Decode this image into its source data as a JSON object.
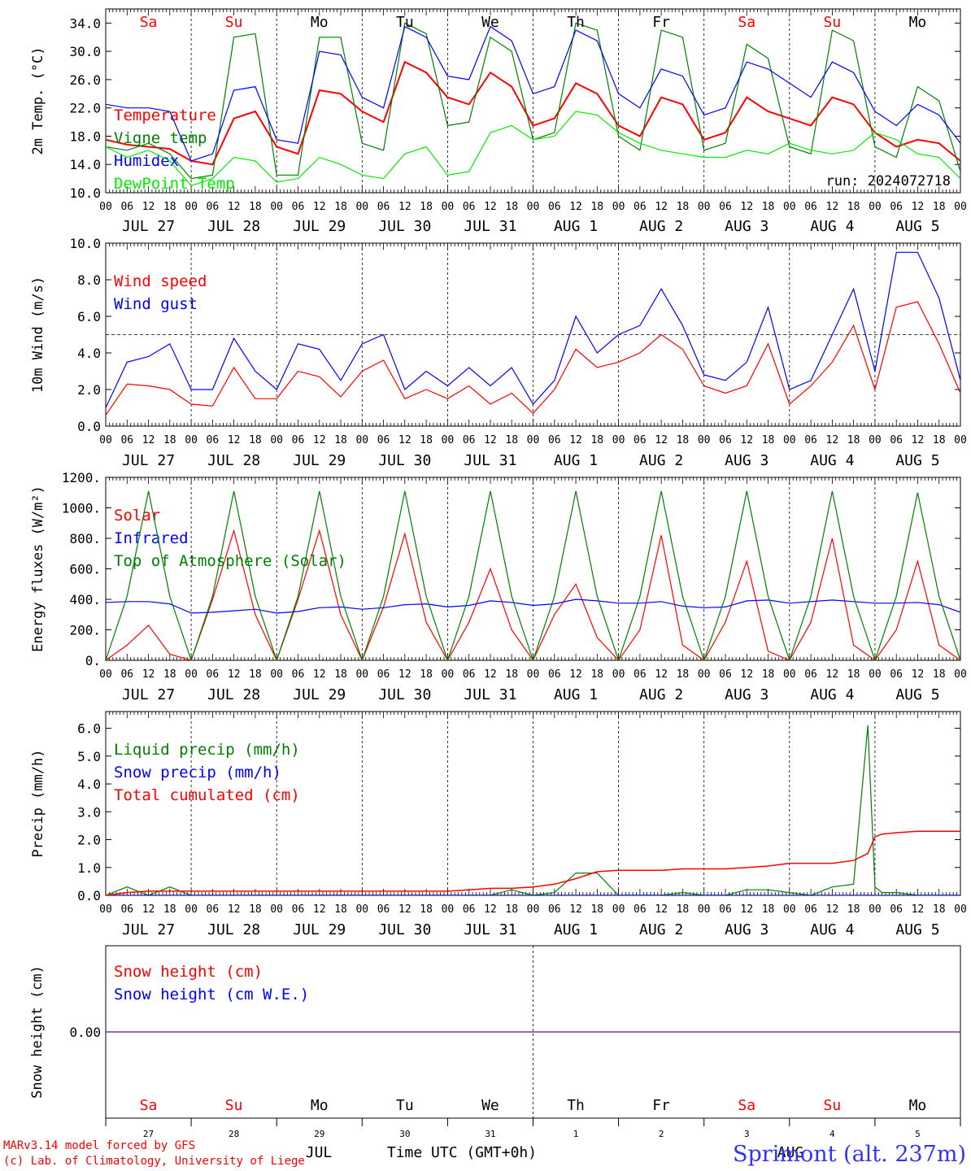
{
  "location": "Sprimont (alt. 237m)",
  "credit": {
    "line1": "MARv3.14 model forced by GFS",
    "line2": "(c) Lab. of Climatology, University of Liege"
  },
  "run_label": "run: 2024072718",
  "bottom_axis": {
    "title": "Time UTC (GMT+0h)",
    "month_label": "JUL",
    "month_label_2": "AUG",
    "day_numbers": [
      "27",
      "28",
      "29",
      "30",
      "31",
      "1",
      "2",
      "3",
      "4",
      "5"
    ]
  },
  "weekdays": [
    {
      "label": "Sa",
      "color": "#ff0000"
    },
    {
      "label": "Su",
      "color": "#ff0000"
    },
    {
      "label": "Mo",
      "color": "#000000"
    },
    {
      "label": "Tu",
      "color": "#000000"
    },
    {
      "label": "We",
      "color": "#000000"
    },
    {
      "label": "Th",
      "color": "#000000"
    },
    {
      "label": "Fr",
      "color": "#000000"
    },
    {
      "label": "Sa",
      "color": "#ff0000"
    },
    {
      "label": "Su",
      "color": "#ff0000"
    },
    {
      "label": "Mo",
      "color": "#000000"
    }
  ],
  "hour_ticks": [
    "00",
    "06",
    "12",
    "18"
  ],
  "date_labels": [
    "JUL 27",
    "JUL 28",
    "JUL 29",
    "JUL 30",
    "JUL 31",
    "AUG  1",
    "AUG  2",
    "AUG  3",
    "AUG  4",
    "AUG  5"
  ],
  "chart_data": [
    {
      "type": "line",
      "ylabel": "2m Temp. (°C)",
      "ylim": [
        10,
        36
      ],
      "yticks": [
        "10.0",
        "14.0",
        "18.0",
        "22.0",
        "26.0",
        "30.0",
        "34.0"
      ],
      "x_unit": "hours since 2024-07-27 00 UTC",
      "x": [
        0,
        6,
        12,
        18,
        24,
        30,
        36,
        42,
        48,
        54,
        60,
        66,
        72,
        78,
        84,
        90,
        96,
        102,
        108,
        114,
        120,
        126,
        132,
        138,
        144,
        150,
        156,
        162,
        168,
        174,
        180,
        186,
        192,
        198,
        204,
        210,
        216,
        222,
        228,
        234,
        240
      ],
      "series": [
        {
          "name": "Temperature",
          "color": "#ff0000",
          "values": [
            17.5,
            16.8,
            16.5,
            16.2,
            14.5,
            14.0,
            20.5,
            21.5,
            16.5,
            15.5,
            24.5,
            24.0,
            21.5,
            20.0,
            28.5,
            27.0,
            23.5,
            22.5,
            27.0,
            25.0,
            19.5,
            20.5,
            25.5,
            24.0,
            19.5,
            18.0,
            23.5,
            22.5,
            17.5,
            18.5,
            23.5,
            21.5,
            20.5,
            19.5,
            23.5,
            22.5,
            18.5,
            16.5,
            17.5,
            17.0,
            14.5
          ]
        },
        {
          "name": "Vigne temp",
          "color": "#008000",
          "values": [
            16.5,
            16.0,
            17.0,
            15.5,
            12.0,
            12.5,
            32.0,
            32.5,
            12.5,
            12.5,
            32.0,
            32.0,
            17.0,
            16.0,
            34.0,
            32.5,
            19.5,
            20.0,
            32.0,
            30.0,
            17.5,
            18.5,
            34.0,
            33.0,
            18.0,
            16.0,
            33.0,
            32.0,
            16.0,
            17.0,
            31.0,
            29.0,
            16.5,
            15.5,
            33.0,
            31.5,
            16.5,
            15.0,
            25.0,
            23.0,
            13.0
          ]
        },
        {
          "name": "Humidex",
          "color": "#0000ff",
          "values": [
            22.5,
            22.0,
            22.0,
            21.5,
            14.5,
            15.5,
            24.5,
            25.0,
            17.5,
            17.0,
            30.0,
            29.5,
            23.5,
            22.0,
            33.5,
            32.0,
            26.5,
            26.0,
            33.5,
            31.5,
            24.0,
            25.0,
            33.0,
            31.5,
            24.0,
            22.0,
            27.5,
            26.5,
            21.0,
            22.0,
            28.5,
            27.5,
            25.5,
            23.5,
            28.5,
            27.0,
            21.5,
            19.5,
            22.5,
            21.0,
            17.0
          ]
        },
        {
          "name": "DewPoint Temp",
          "color": "#00ee00",
          "values": [
            16.5,
            15.0,
            16.0,
            14.5,
            11.0,
            12.0,
            15.0,
            14.5,
            11.5,
            12.0,
            15.0,
            14.0,
            12.5,
            12.0,
            15.5,
            16.5,
            12.5,
            13.0,
            18.5,
            19.5,
            17.5,
            18.0,
            21.5,
            21.0,
            18.5,
            17.0,
            16.0,
            15.5,
            15.0,
            15.0,
            16.0,
            15.5,
            17.0,
            16.0,
            15.5,
            16.0,
            18.5,
            17.5,
            15.5,
            15.0,
            12.0
          ]
        }
      ]
    },
    {
      "type": "line",
      "ylabel": "10m Wind (m/s)",
      "ylim": [
        0,
        10
      ],
      "yticks": [
        "0.0",
        "2.0",
        "4.0",
        "6.0",
        "8.0",
        "10.0"
      ],
      "reference_line": 5.0,
      "x": [
        0,
        6,
        12,
        18,
        24,
        30,
        36,
        42,
        48,
        54,
        60,
        66,
        72,
        78,
        84,
        90,
        96,
        102,
        108,
        114,
        120,
        126,
        132,
        138,
        144,
        150,
        156,
        162,
        168,
        174,
        180,
        186,
        192,
        198,
        204,
        210,
        216,
        222,
        228,
        234,
        240
      ],
      "series": [
        {
          "name": "Wind speed",
          "color": "#ff0000",
          "values": [
            0.6,
            2.3,
            2.2,
            2.0,
            1.2,
            1.1,
            3.2,
            1.5,
            1.5,
            3.0,
            2.7,
            1.6,
            3.0,
            3.6,
            1.5,
            2.0,
            1.5,
            2.2,
            1.2,
            1.8,
            0.7,
            2.0,
            4.2,
            3.2,
            3.5,
            4.0,
            5.0,
            4.2,
            2.2,
            1.8,
            2.2,
            4.5,
            1.2,
            2.2,
            3.5,
            5.5,
            2.0,
            6.5,
            6.8,
            4.5,
            1.8
          ]
        },
        {
          "name": "Wind gust",
          "color": "#0000ff",
          "values": [
            1.0,
            3.5,
            3.8,
            4.5,
            2.0,
            2.0,
            4.8,
            3.0,
            2.0,
            4.5,
            4.2,
            2.5,
            4.5,
            5.0,
            2.0,
            3.0,
            2.2,
            3.2,
            2.2,
            3.2,
            1.2,
            2.5,
            6.0,
            4.0,
            5.0,
            5.5,
            7.5,
            5.5,
            2.8,
            2.5,
            3.5,
            6.5,
            2.0,
            2.5,
            5.0,
            7.5,
            3.0,
            9.5,
            9.5,
            7.0,
            2.5
          ]
        }
      ]
    },
    {
      "type": "line",
      "ylabel": "Energy fluxes (W/m²)",
      "ylim": [
        0,
        1200
      ],
      "yticks": [
        "0.",
        "200.",
        "400.",
        "600.",
        "800.",
        "1000.",
        "1200."
      ],
      "x": [
        0,
        6,
        12,
        18,
        24,
        30,
        36,
        42,
        48,
        54,
        60,
        66,
        72,
        78,
        84,
        90,
        96,
        102,
        108,
        114,
        120,
        126,
        132,
        138,
        144,
        150,
        156,
        162,
        168,
        174,
        180,
        186,
        192,
        198,
        204,
        210,
        216,
        222,
        228,
        234,
        240
      ],
      "series": [
        {
          "name": "Solar",
          "color": "#ff0000",
          "values": [
            0,
            100,
            230,
            40,
            0,
            400,
            850,
            300,
            0,
            400,
            850,
            300,
            0,
            350,
            830,
            250,
            0,
            250,
            600,
            200,
            0,
            300,
            500,
            150,
            0,
            200,
            820,
            100,
            0,
            250,
            650,
            60,
            0,
            250,
            800,
            100,
            0,
            200,
            650,
            100,
            0
          ]
        },
        {
          "name": "Infrared",
          "color": "#0000ff",
          "values": [
            380,
            385,
            385,
            370,
            310,
            315,
            325,
            335,
            310,
            320,
            345,
            350,
            335,
            345,
            365,
            370,
            350,
            360,
            390,
            380,
            360,
            370,
            400,
            390,
            375,
            375,
            385,
            355,
            345,
            350,
            390,
            395,
            375,
            385,
            395,
            385,
            375,
            375,
            380,
            365,
            315
          ]
        },
        {
          "name": "Top of Atmosphere (Solar)",
          "color": "#008000",
          "values": [
            0,
            420,
            1110,
            420,
            0,
            420,
            1110,
            420,
            0,
            420,
            1110,
            420,
            0,
            420,
            1110,
            420,
            0,
            420,
            1110,
            420,
            0,
            420,
            1110,
            420,
            0,
            420,
            1110,
            420,
            0,
            420,
            1110,
            420,
            0,
            420,
            1110,
            420,
            0,
            420,
            1100,
            420,
            0
          ]
        }
      ]
    },
    {
      "type": "line",
      "ylabel": "Precip (mm/h)",
      "ylim": [
        0,
        6.6
      ],
      "yticks": [
        "0.0",
        "1.0",
        "2.0",
        "3.0",
        "4.0",
        "5.0",
        "6.0"
      ],
      "x": [
        0,
        6,
        12,
        18,
        24,
        30,
        36,
        42,
        48,
        54,
        60,
        66,
        72,
        78,
        84,
        90,
        96,
        102,
        108,
        114,
        120,
        126,
        132,
        138,
        144,
        150,
        156,
        162,
        168,
        174,
        180,
        186,
        192,
        198,
        204,
        210,
        214,
        216,
        218,
        222,
        228,
        234,
        240
      ],
      "series": [
        {
          "name": "Liquid precip (mm/h)",
          "color": "#008000",
          "values": [
            0,
            0.3,
            0,
            0.3,
            0,
            0,
            0,
            0,
            0,
            0,
            0,
            0,
            0,
            0,
            0,
            0,
            0,
            0,
            0,
            0.2,
            0,
            0.1,
            0.8,
            0.8,
            0,
            0,
            0,
            0.1,
            0,
            0,
            0.2,
            0.2,
            0.1,
            0,
            0.3,
            0.4,
            6.1,
            0.3,
            0.1,
            0.1,
            0,
            0,
            0
          ]
        },
        {
          "name": "Snow precip (mm/h)",
          "color": "#0000ff",
          "values": [
            0,
            0,
            0,
            0,
            0,
            0,
            0,
            0,
            0,
            0,
            0,
            0,
            0,
            0,
            0,
            0,
            0,
            0,
            0,
            0,
            0,
            0,
            0,
            0,
            0,
            0,
            0,
            0,
            0,
            0,
            0,
            0,
            0,
            0,
            0,
            0,
            0,
            0,
            0,
            0,
            0,
            0,
            0
          ]
        },
        {
          "name": "Total cumulated (cm)",
          "color": "#ff0000",
          "values": [
            0,
            0.1,
            0.15,
            0.15,
            0.15,
            0.15,
            0.15,
            0.15,
            0.15,
            0.15,
            0.15,
            0.15,
            0.15,
            0.15,
            0.15,
            0.15,
            0.15,
            0.2,
            0.25,
            0.25,
            0.3,
            0.4,
            0.6,
            0.85,
            0.9,
            0.9,
            0.9,
            0.95,
            0.95,
            0.95,
            1.0,
            1.05,
            1.15,
            1.15,
            1.15,
            1.25,
            1.5,
            2.1,
            2.2,
            2.25,
            2.3,
            2.3,
            2.3
          ]
        }
      ]
    },
    {
      "type": "line",
      "ylabel": "Snow height (cm)",
      "ylim": [
        -1,
        1
      ],
      "yticks": [
        "0.00"
      ],
      "x": [
        0,
        240
      ],
      "series": [
        {
          "name": "Snow height (cm)",
          "color": "#ff0000",
          "values": [
            0,
            0
          ]
        },
        {
          "name": "Snow height (cm W.E.)",
          "color": "#0000ff",
          "values": [
            0,
            0
          ]
        }
      ]
    }
  ]
}
